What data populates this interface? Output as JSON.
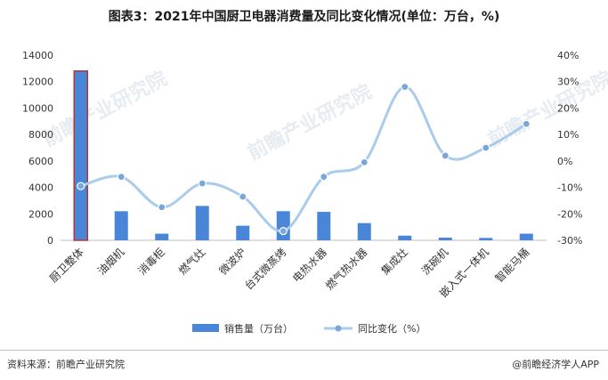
{
  "title": "图表3：2021年中国厨卫电器消费量及同比变化情况(单位：万台，%)",
  "source": "资料来源：前瞻产业研究院",
  "brand": "@前瞻经济学人APP",
  "watermark": "前瞻产业研究院",
  "colors": {
    "bar": "#4a86d8",
    "line": "#a9cbec",
    "highlight_border": "#c0302e"
  },
  "chart_data": {
    "type": "bar",
    "categories": [
      "厨卫整体",
      "油烟机",
      "消毒柜",
      "燃气灶",
      "微波炉",
      "台式微蒸烤",
      "电热水器",
      "燃气热水器",
      "集成灶",
      "洗碗机",
      "嵌入式一体机",
      "智能马桶"
    ],
    "series": [
      {
        "name": "销售量（万台）",
        "type": "bar",
        "axis": "left",
        "values": [
          12800,
          2200,
          500,
          2600,
          1100,
          2200,
          2150,
          1300,
          350,
          200,
          180,
          500
        ]
      },
      {
        "name": "同比变化（%）",
        "type": "line",
        "axis": "right",
        "values": [
          -9.5,
          -6,
          -17.5,
          -8.5,
          -13.5,
          -26.5,
          -6,
          -0.5,
          28,
          2,
          5,
          14
        ]
      }
    ],
    "y_left": {
      "min": 0,
      "max": 14000,
      "ticks": [
        0,
        2000,
        4000,
        6000,
        8000,
        10000,
        12000,
        14000
      ]
    },
    "y_right": {
      "min": -30,
      "max": 40,
      "ticks": [
        "-30%",
        "-20%",
        "-10%",
        "0%",
        "10%",
        "20%",
        "30%",
        "40%"
      ]
    },
    "highlighted_category": "厨卫整体",
    "legend_position": "bottom"
  }
}
